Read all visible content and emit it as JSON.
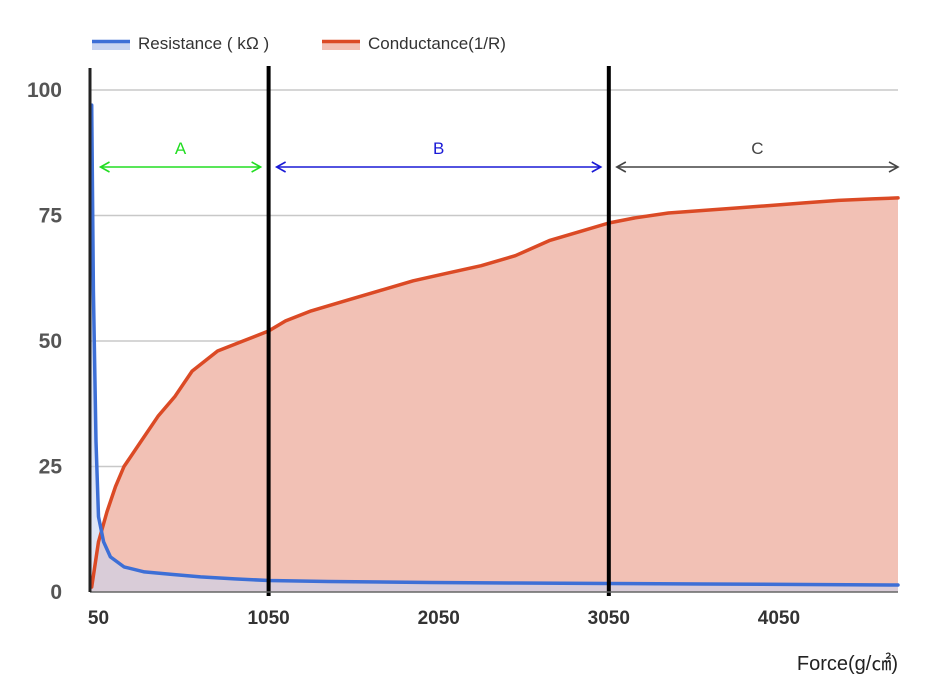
{
  "chart_data": {
    "type": "area",
    "xlabel": "Force(g/㎠)",
    "ylabel": "",
    "xlim": [
      0,
      4750
    ],
    "ylim": [
      0,
      100
    ],
    "x_ticks": [
      50,
      1050,
      2050,
      3050,
      4050
    ],
    "y_ticks": [
      0,
      25,
      50,
      75,
      100
    ],
    "grid": true,
    "legend_position": "top-left",
    "series": [
      {
        "name": "Resistance ( kΩ )",
        "color": "#3d6fd6",
        "fill": "#c8d4f0",
        "x": [
          10,
          20,
          35,
          50,
          80,
          120,
          200,
          320,
          480,
          650,
          850,
          1050,
          1400,
          2000,
          2500,
          3050,
          3600,
          4200,
          4750
        ],
        "y": [
          97,
          60,
          30,
          15,
          10,
          7,
          5,
          4,
          3.5,
          3,
          2.6,
          2.3,
          2.1,
          1.9,
          1.8,
          1.7,
          1.6,
          1.5,
          1.4
        ]
      },
      {
        "name": "Conductance(1/R)",
        "color": "#db4a25",
        "fill": "#f2c1b5",
        "x": [
          10,
          50,
          100,
          150,
          200,
          300,
          400,
          500,
          600,
          750,
          900,
          1050,
          1150,
          1300,
          1500,
          1700,
          1900,
          2100,
          2300,
          2500,
          2700,
          2900,
          3050,
          3200,
          3400,
          3600,
          3800,
          4000,
          4200,
          4400,
          4600,
          4750
        ],
        "y": [
          1,
          10,
          16,
          21,
          25,
          30,
          35,
          39,
          44,
          48,
          50,
          52,
          54,
          56,
          58,
          60,
          62,
          63.5,
          65,
          67,
          70,
          72,
          73.5,
          74.5,
          75.5,
          76,
          76.5,
          77,
          77.5,
          78,
          78.3,
          78.5
        ]
      }
    ],
    "boundaries": [
      1050,
      3050
    ],
    "regions": [
      {
        "label": "A",
        "from": 50,
        "to": 1050,
        "color": "#22dd22"
      },
      {
        "label": "B",
        "from": 1050,
        "to": 3050,
        "color": "#1a1ad6"
      },
      {
        "label": "C",
        "from": 3050,
        "to": 4750,
        "color": "#444444"
      }
    ]
  }
}
